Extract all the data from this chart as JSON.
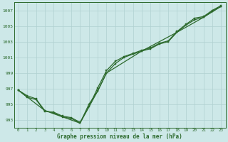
{
  "title": "Graphe pression niveau de la mer (hPa)",
  "bg_color": "#cde8e8",
  "line_color": "#2d6a2d",
  "grid_color": "#b0d0d0",
  "xlim": [
    -0.5,
    23.5
  ],
  "ylim": [
    992.0,
    1008.0
  ],
  "yticks": [
    993,
    995,
    997,
    999,
    1001,
    1003,
    1005,
    1007
  ],
  "xticks": [
    0,
    1,
    2,
    3,
    4,
    5,
    6,
    7,
    8,
    9,
    10,
    11,
    12,
    13,
    14,
    15,
    16,
    17,
    18,
    19,
    20,
    21,
    22,
    23
  ],
  "series1_x": [
    0,
    1,
    2,
    3,
    4,
    5,
    6,
    7,
    8,
    9,
    10,
    11,
    12,
    13,
    14,
    15,
    16,
    17,
    18,
    19,
    20,
    21,
    22,
    23
  ],
  "series1_y": [
    996.8,
    996.1,
    995.7,
    994.2,
    993.9,
    993.4,
    993.2,
    992.6,
    995.0,
    996.7,
    999.0,
    1000.2,
    1001.0,
    1001.4,
    1001.8,
    1002.1,
    1002.7,
    1003.0,
    1004.2,
    1005.1,
    1005.8,
    1006.1,
    1006.9,
    1007.5
  ],
  "series2_x": [
    0,
    1,
    2,
    3,
    4,
    5,
    6,
    7,
    8,
    9,
    10,
    11,
    12,
    13,
    14,
    15,
    16,
    17,
    18,
    19,
    20,
    21,
    22,
    23
  ],
  "series2_y": [
    996.8,
    995.9,
    995.6,
    994.1,
    994.0,
    993.5,
    993.3,
    992.7,
    994.7,
    997.1,
    999.3,
    1000.5,
    1001.1,
    1001.5,
    1001.9,
    1002.2,
    1002.8,
    1003.1,
    1004.3,
    1005.2,
    1006.0,
    1006.2,
    1007.0,
    1007.6
  ],
  "series3_x": [
    0,
    3,
    7,
    9,
    10,
    14,
    18,
    21,
    23
  ],
  "series3_y": [
    996.8,
    994.2,
    992.6,
    996.7,
    999.0,
    1001.8,
    1004.2,
    1006.1,
    1007.5
  ]
}
